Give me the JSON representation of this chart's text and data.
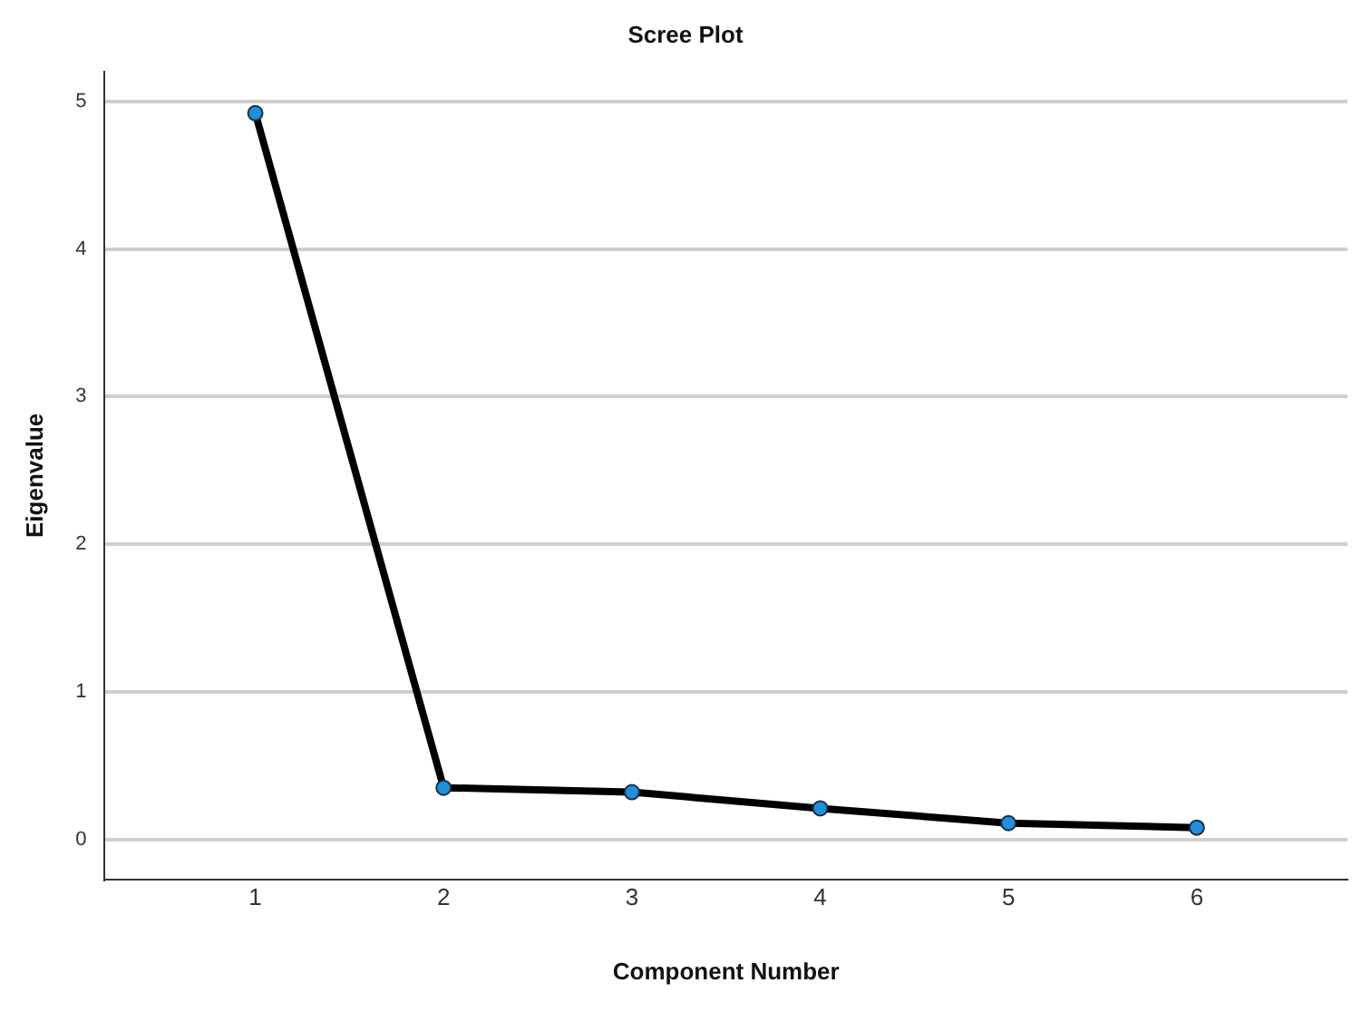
{
  "chart_data": {
    "type": "line",
    "title": "Scree Plot",
    "xlabel": "Component Number",
    "ylabel": "Eigenvalue",
    "x": [
      1,
      2,
      3,
      4,
      5,
      6
    ],
    "series": [
      {
        "color": "#000000",
        "values": [
          4.92,
          0.35,
          0.32,
          0.21,
          0.11,
          0.08
        ]
      }
    ],
    "xlim": [
      0.2,
      6.8
    ],
    "xticks": [
      1,
      2,
      3,
      4,
      5,
      6
    ],
    "ylim": [
      -0.27,
      5.2
    ],
    "yticks": [
      0,
      1,
      2,
      3,
      4,
      5
    ],
    "grid": "y",
    "legend": false,
    "marker": "circle",
    "line_style": "solid"
  }
}
